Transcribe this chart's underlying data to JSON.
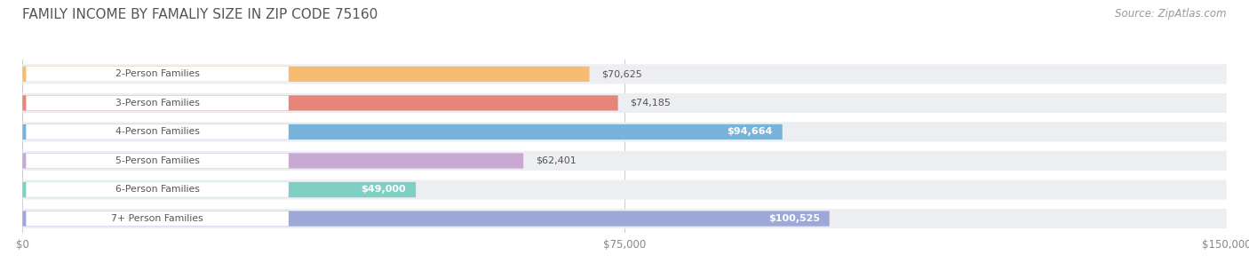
{
  "title": "FAMILY INCOME BY FAMALIY SIZE IN ZIP CODE 75160",
  "source": "Source: ZipAtlas.com",
  "categories": [
    "2-Person Families",
    "3-Person Families",
    "4-Person Families",
    "5-Person Families",
    "6-Person Families",
    "7+ Person Families"
  ],
  "values": [
    70625,
    74185,
    94664,
    62401,
    49000,
    100525
  ],
  "bar_colors": [
    "#F5BC72",
    "#E8857A",
    "#7AB3D9",
    "#C9A8D4",
    "#7ECFC4",
    "#9DA8D8"
  ],
  "bar_bg_color": "#EDEEF2",
  "xmax": 150000,
  "xticks": [
    0,
    75000,
    150000
  ],
  "xtick_labels": [
    "$0",
    "$75,000",
    "$150,000"
  ],
  "title_fontsize": 11,
  "source_fontsize": 8.5,
  "background_color": "#FFFFFF",
  "value_labels_inside": [
    false,
    false,
    true,
    false,
    true,
    true
  ],
  "value_label_texts": [
    "$70,625",
    "$74,185",
    "$94,664",
    "$62,401",
    "$49,000",
    "$100,525"
  ]
}
